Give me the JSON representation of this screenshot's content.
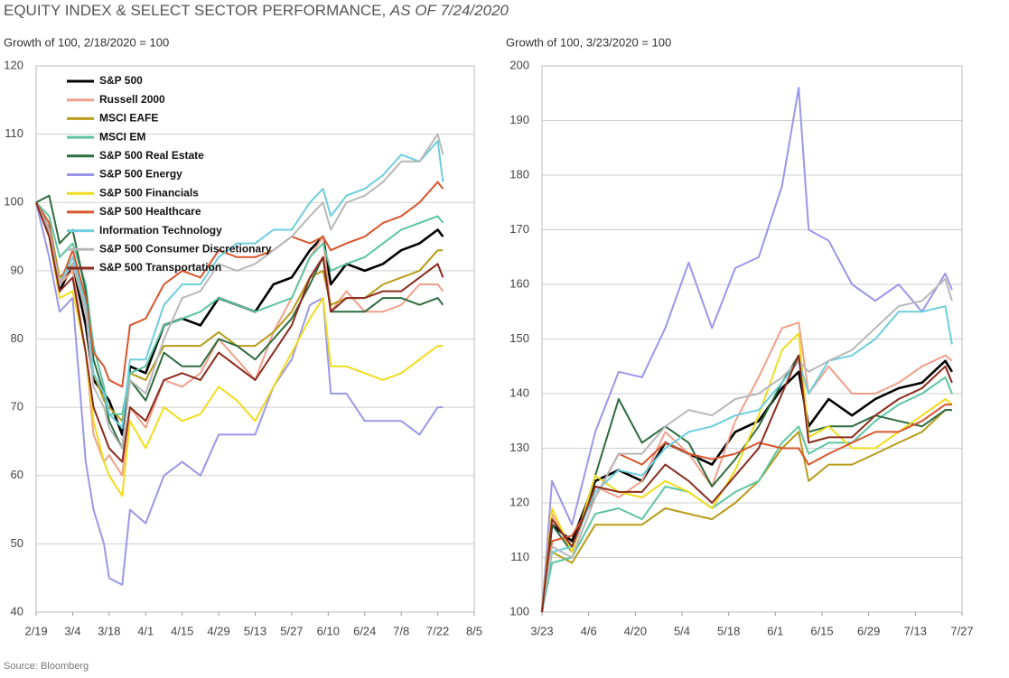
{
  "title": "EQUITY INDEX & SELECT SECTOR PERFORMANCE, ",
  "title_note": "AS OF 7/24/2020",
  "source": "Source: Bloomberg",
  "chart_data": [
    {
      "type": "line",
      "subtitle": "Growth of 100, 2/18/2020 = 100",
      "legend": "upper left",
      "grid": true,
      "x": [
        "2/19",
        "2/24",
        "2/28",
        "3/4",
        "3/9",
        "3/12",
        "3/16",
        "3/18",
        "3/23",
        "3/26",
        "4/1",
        "4/8",
        "4/15",
        "4/22",
        "4/29",
        "5/6",
        "5/13",
        "5/20",
        "5/27",
        "6/3",
        "6/8",
        "6/11",
        "6/17",
        "6/24",
        "7/1",
        "7/8",
        "7/15",
        "7/22",
        "7/24"
      ],
      "xlim": [
        "2/19",
        "8/5"
      ],
      "xticks": [
        "2/19",
        "3/4",
        "3/18",
        "4/1",
        "4/15",
        "4/29",
        "5/13",
        "5/27",
        "6/10",
        "6/24",
        "7/8",
        "7/22",
        "8/5"
      ],
      "ylim": [
        40,
        120
      ],
      "yticks": [
        40,
        50,
        60,
        70,
        80,
        90,
        100,
        110,
        120
      ],
      "series": [
        {
          "name": "S&P 500",
          "color": "#000000",
          "values": [
            100,
            96,
            87,
            91,
            82,
            74,
            72,
            71,
            66,
            76,
            75,
            82,
            83,
            82,
            86,
            85,
            84,
            88,
            89,
            93,
            95,
            88,
            91,
            90,
            91,
            93,
            94,
            96,
            95
          ]
        },
        {
          "name": "Russell 2000",
          "color": "#f0a08a",
          "values": [
            100,
            96,
            88,
            90,
            78,
            66,
            62,
            63,
            60,
            70,
            67,
            74,
            73,
            75,
            80,
            77,
            74,
            81,
            86,
            92,
            95,
            84,
            87,
            84,
            84,
            85,
            88,
            88,
            87
          ]
        },
        {
          "name": "MSCI EAFE",
          "color": "#b89b1a",
          "values": [
            100,
            97,
            89,
            91,
            84,
            75,
            71,
            70,
            68,
            75,
            74,
            79,
            79,
            79,
            81,
            79,
            79,
            81,
            84,
            89,
            90,
            85,
            86,
            86,
            88,
            89,
            90,
            93,
            93
          ]
        },
        {
          "name": "MSCI EM",
          "color": "#5cc5a0",
          "values": [
            100,
            98,
            92,
            94,
            88,
            79,
            73,
            69,
            69,
            75,
            76,
            82,
            83,
            84,
            86,
            85,
            84,
            85,
            86,
            92,
            94,
            90,
            91,
            92,
            94,
            96,
            97,
            98,
            97
          ]
        },
        {
          "name": "S&P 500 Real Estate",
          "color": "#2e6b3e",
          "values": [
            100,
            101,
            94,
            96,
            87,
            77,
            72,
            68,
            64,
            74,
            71,
            78,
            76,
            76,
            80,
            79,
            77,
            80,
            83,
            88,
            92,
            84,
            84,
            84,
            86,
            86,
            85,
            86,
            85
          ]
        },
        {
          "name": "S&P 500 Energy",
          "color": "#9b97e8",
          "values": [
            100,
            92,
            84,
            86,
            62,
            55,
            50,
            45,
            44,
            55,
            53,
            60,
            62,
            60,
            66,
            66,
            66,
            73,
            77,
            85,
            86,
            72,
            72,
            68,
            68,
            68,
            66,
            70,
            70
          ]
        },
        {
          "name": "S&P 500 Financials",
          "color": "#f0dc1e",
          "values": [
            100,
            95,
            86,
            87,
            78,
            68,
            62,
            60,
            57,
            68,
            64,
            70,
            68,
            69,
            73,
            71,
            68,
            73,
            78,
            83,
            86,
            76,
            76,
            75,
            74,
            75,
            77,
            79,
            79
          ]
        },
        {
          "name": "S&P 500 Healthcare",
          "color": "#d9552b",
          "values": [
            100,
            97,
            88,
            93,
            86,
            78,
            76,
            74,
            73,
            82,
            83,
            88,
            90,
            89,
            93,
            92,
            92,
            93,
            95,
            94,
            95,
            93,
            94,
            95,
            97,
            98,
            100,
            103,
            102
          ]
        },
        {
          "name": "Information Technology",
          "color": "#6ccfdc",
          "values": [
            100,
            96,
            88,
            92,
            85,
            75,
            72,
            69,
            67,
            77,
            77,
            85,
            88,
            88,
            92,
            94,
            94,
            96,
            96,
            100,
            102,
            98,
            101,
            102,
            104,
            107,
            106,
            109,
            103
          ]
        },
        {
          "name": "S&P 500 Consumer Discretionary",
          "color": "#b8b8b8",
          "values": [
            100,
            96,
            88,
            91,
            84,
            73,
            70,
            67,
            64,
            74,
            72,
            80,
            86,
            87,
            91,
            90,
            91,
            93,
            95,
            98,
            100,
            96,
            100,
            101,
            103,
            106,
            106,
            110,
            107
          ]
        },
        {
          "name": "S&P 500 Transportation",
          "color": "#8b2a1e",
          "values": [
            100,
            95,
            87,
            89,
            78,
            70,
            66,
            64,
            62,
            70,
            68,
            74,
            75,
            74,
            78,
            76,
            74,
            78,
            82,
            89,
            92,
            84,
            86,
            86,
            87,
            87,
            89,
            91,
            89
          ]
        }
      ]
    },
    {
      "type": "line",
      "subtitle": "Growth of 100, 3/23/2020 = 100",
      "grid": true,
      "x": [
        "3/23",
        "3/26",
        "4/1",
        "4/8",
        "4/15",
        "4/22",
        "4/29",
        "5/6",
        "5/13",
        "5/20",
        "5/27",
        "6/3",
        "6/8",
        "6/11",
        "6/17",
        "6/24",
        "7/1",
        "7/8",
        "7/15",
        "7/22",
        "7/24"
      ],
      "xlim": [
        "3/23",
        "7/27"
      ],
      "xticks": [
        "3/23",
        "4/6",
        "4/20",
        "5/4",
        "5/18",
        "6/1",
        "6/15",
        "6/29",
        "7/13",
        "7/27"
      ],
      "ylim": [
        100,
        200
      ],
      "yticks": [
        100,
        110,
        120,
        130,
        140,
        150,
        160,
        170,
        180,
        190,
        200
      ],
      "series": [
        {
          "color": "#000000",
          "values": [
            100,
            116,
            113,
            124,
            126,
            124,
            131,
            129,
            127,
            133,
            135,
            141,
            144,
            134,
            139,
            136,
            139,
            141,
            142,
            146,
            144
          ]
        },
        {
          "color": "#f0a08a",
          "values": [
            100,
            118,
            111,
            123,
            121,
            124,
            133,
            129,
            123,
            135,
            143,
            152,
            153,
            140,
            145,
            140,
            140,
            142,
            145,
            147,
            146
          ]
        },
        {
          "color": "#b89b1a",
          "values": [
            100,
            111,
            109,
            116,
            116,
            116,
            119,
            118,
            117,
            120,
            124,
            130,
            133,
            124,
            127,
            127,
            129,
            131,
            133,
            137,
            137
          ]
        },
        {
          "color": "#5cc5a0",
          "values": [
            100,
            109,
            110,
            118,
            119,
            117,
            123,
            122,
            119,
            122,
            124,
            131,
            134,
            129,
            131,
            131,
            135,
            138,
            140,
            143,
            140
          ]
        },
        {
          "color": "#2e6b3e",
          "values": [
            100,
            116,
            111,
            125,
            139,
            131,
            134,
            131,
            123,
            128,
            134,
            142,
            147,
            133,
            134,
            134,
            136,
            135,
            134,
            137,
            137
          ]
        },
        {
          "color": "#9b97e8",
          "values": [
            100,
            124,
            116,
            133,
            144,
            143,
            152,
            164,
            152,
            163,
            165,
            178,
            196,
            170,
            168,
            160,
            157,
            160,
            155,
            162,
            159
          ]
        },
        {
          "color": "#f0dc1e",
          "values": [
            100,
            119,
            111,
            125,
            122,
            121,
            124,
            122,
            119,
            126,
            136,
            148,
            151,
            132,
            134,
            130,
            130,
            133,
            136,
            139,
            138
          ]
        },
        {
          "color": "#d9552b",
          "values": [
            100,
            113,
            114,
            121,
            129,
            127,
            131,
            129,
            128,
            129,
            131,
            130,
            130,
            127,
            129,
            131,
            133,
            133,
            135,
            138,
            138
          ]
        },
        {
          "color": "#6ccfdc",
          "values": [
            100,
            111,
            112,
            122,
            126,
            125,
            130,
            133,
            134,
            136,
            137,
            142,
            146,
            140,
            146,
            147,
            150,
            155,
            155,
            156,
            149
          ]
        },
        {
          "color": "#b8b8b8",
          "values": [
            100,
            112,
            110,
            121,
            129,
            129,
            134,
            137,
            136,
            139,
            140,
            143,
            146,
            144,
            146,
            148,
            152,
            156,
            157,
            161,
            157
          ]
        },
        {
          "color": "#8b2a1e",
          "values": [
            100,
            117,
            112,
            123,
            122,
            122,
            127,
            124,
            120,
            125,
            130,
            140,
            147,
            131,
            132,
            132,
            136,
            139,
            141,
            145,
            142
          ]
        }
      ]
    }
  ]
}
